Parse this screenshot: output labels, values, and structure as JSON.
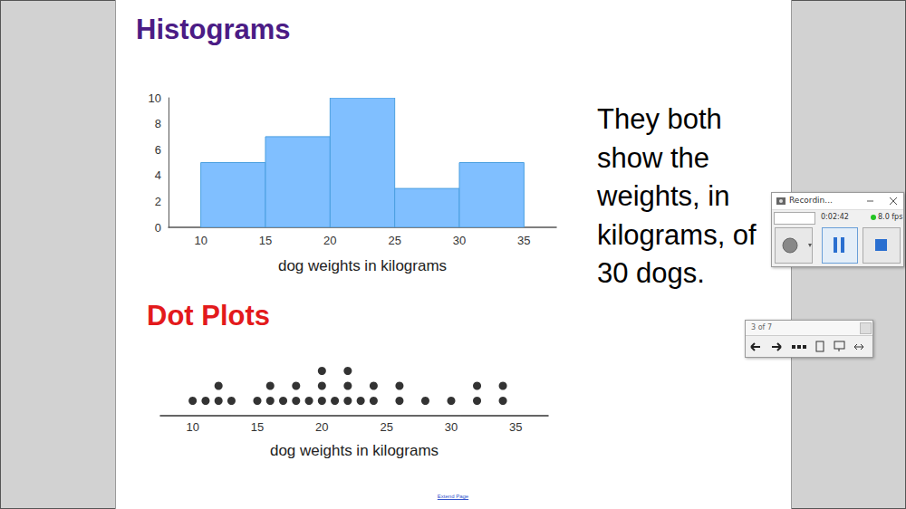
{
  "chart_data": [
    {
      "type": "histogram",
      "title": "Histograms",
      "bins": [
        10,
        15,
        20,
        25,
        30,
        35
      ],
      "values": [
        5,
        7,
        10,
        3,
        5
      ],
      "color": "#80bfff",
      "xlabel": "dog weights in kilograms",
      "xlim": [
        7.5,
        37.5
      ],
      "xticks": [
        10,
        15,
        20,
        25,
        30,
        35
      ],
      "ylim": [
        0,
        10
      ],
      "yticks": [
        0,
        2,
        4,
        6,
        8,
        10
      ],
      "grid": false
    },
    {
      "type": "dot",
      "title": "Dot Plots",
      "x": [
        10,
        11,
        12,
        13,
        15,
        16,
        17,
        18,
        19,
        20,
        21,
        22,
        23,
        24,
        26,
        28,
        30,
        32,
        34
      ],
      "values": [
        1,
        1,
        2,
        1,
        1,
        2,
        1,
        2,
        1,
        3,
        1,
        3,
        1,
        2,
        2,
        1,
        1,
        2,
        2
      ],
      "color": "#000000",
      "xlabel": "dog weights in kilograms",
      "xlim": [
        7.5,
        37.5
      ],
      "xticks": [
        10,
        15,
        20,
        25,
        30,
        35
      ],
      "tick_labels": "x",
      "grid": false
    }
  ],
  "page": {
    "note": [
      "They both",
      "show the",
      "weights, in",
      "kilograms, of",
      "30 dogs."
    ],
    "recorder": {
      "title": "Recordin...",
      "time": "0:02:42",
      "fps": "8.0 fps"
    },
    "pager": "3 of 7",
    "footer": "Extend Page"
  }
}
